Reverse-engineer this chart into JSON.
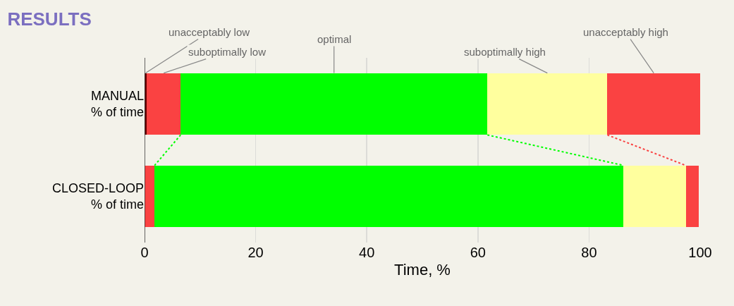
{
  "chart_data": {
    "type": "bar",
    "orientation": "horizontal",
    "stacked": true,
    "title": "RESULTS",
    "xlabel": "Time, %",
    "categories": [
      "MANUAL\n% of time",
      "CLOSED-LOOP\n% of time"
    ],
    "series": [
      {
        "name": "unacceptably low",
        "color": "#660000",
        "values": [
          0.4,
          null
        ]
      },
      {
        "name": "suboptimally low",
        "color": "#fa4242",
        "values": [
          6.1,
          1.8
        ]
      },
      {
        "name": "optimal",
        "color": "#00ff00",
        "values": [
          55.2,
          84.4
        ]
      },
      {
        "name": "suboptimally high",
        "color": "#ffff9e",
        "values": [
          21.6,
          11.2
        ]
      },
      {
        "name": "unacceptably high",
        "color": "#fa4242",
        "values": [
          16.7,
          2.4
        ]
      }
    ],
    "xlim": [
      0,
      100
    ],
    "xticks": [
      0,
      20,
      40,
      60,
      80,
      100
    ],
    "grid": "x",
    "legend": false
  }
}
